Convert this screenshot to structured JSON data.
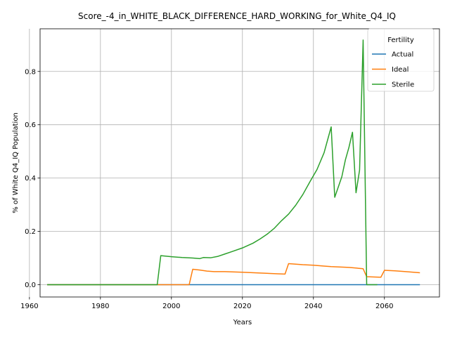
{
  "chart_data": {
    "type": "line",
    "title": "Score_-4_in_WHITE_BLACK_DIFFERENCE_HARD_WORKING_for_White_Q4_IQ",
    "xlabel": "Years",
    "ylabel": "% of White Q4_IQ Population",
    "xlim": [
      1963,
      2075.5
    ],
    "ylim": [
      -0.046,
      0.96
    ],
    "xticks": [
      1960,
      1980,
      2000,
      2020,
      2040,
      2060
    ],
    "yticks": [
      0.0,
      0.2,
      0.4,
      0.6,
      0.8
    ],
    "xtick_labels": [
      "1960",
      "1980",
      "2000",
      "2020",
      "2040",
      "2060"
    ],
    "ytick_labels": [
      "0.0",
      "0.2",
      "0.4",
      "0.6",
      "0.8"
    ],
    "grid": true,
    "legend": {
      "title": "Fertility",
      "placement": "top-right"
    },
    "series": [
      {
        "name": "Actual",
        "color": "#1f77b4",
        "x": [
          1965,
          2070
        ],
        "y": [
          0.0,
          0.0
        ]
      },
      {
        "name": "Ideal",
        "color": "#ff7f0e",
        "x": [
          1965,
          2005,
          2006,
          2008,
          2010,
          2012,
          2015,
          2020,
          2025,
          2030,
          2032,
          2033,
          2035,
          2037,
          2040,
          2043,
          2045,
          2050,
          2054,
          2055,
          2059,
          2060,
          2063,
          2066,
          2070
        ],
        "y": [
          0.0,
          0.0,
          0.058,
          0.055,
          0.051,
          0.049,
          0.049,
          0.047,
          0.044,
          0.041,
          0.04,
          0.079,
          0.077,
          0.075,
          0.073,
          0.07,
          0.068,
          0.065,
          0.06,
          0.03,
          0.028,
          0.054,
          0.052,
          0.049,
          0.045
        ]
      },
      {
        "name": "Sterile",
        "color": "#2ca02c",
        "x": [
          1965,
          1996,
          1997,
          2000,
          2003,
          2006,
          2008,
          2009,
          2011,
          2013,
          2015,
          2017,
          2020,
          2023,
          2025,
          2027,
          2029,
          2031,
          2033,
          2035,
          2037,
          2039,
          2041,
          2043,
          2045,
          2046,
          2048,
          2049,
          2050,
          2051,
          2052,
          2053,
          2054,
          2055,
          2056,
          2058
        ],
        "y": [
          0.0,
          0.0,
          0.109,
          0.105,
          0.102,
          0.1,
          0.098,
          0.102,
          0.101,
          0.106,
          0.115,
          0.124,
          0.138,
          0.156,
          0.172,
          0.19,
          0.212,
          0.24,
          0.265,
          0.298,
          0.338,
          0.386,
          0.432,
          0.495,
          0.592,
          0.328,
          0.405,
          0.468,
          0.515,
          0.572,
          0.345,
          0.43,
          0.918,
          0.0,
          0.0,
          0.0
        ]
      }
    ]
  }
}
